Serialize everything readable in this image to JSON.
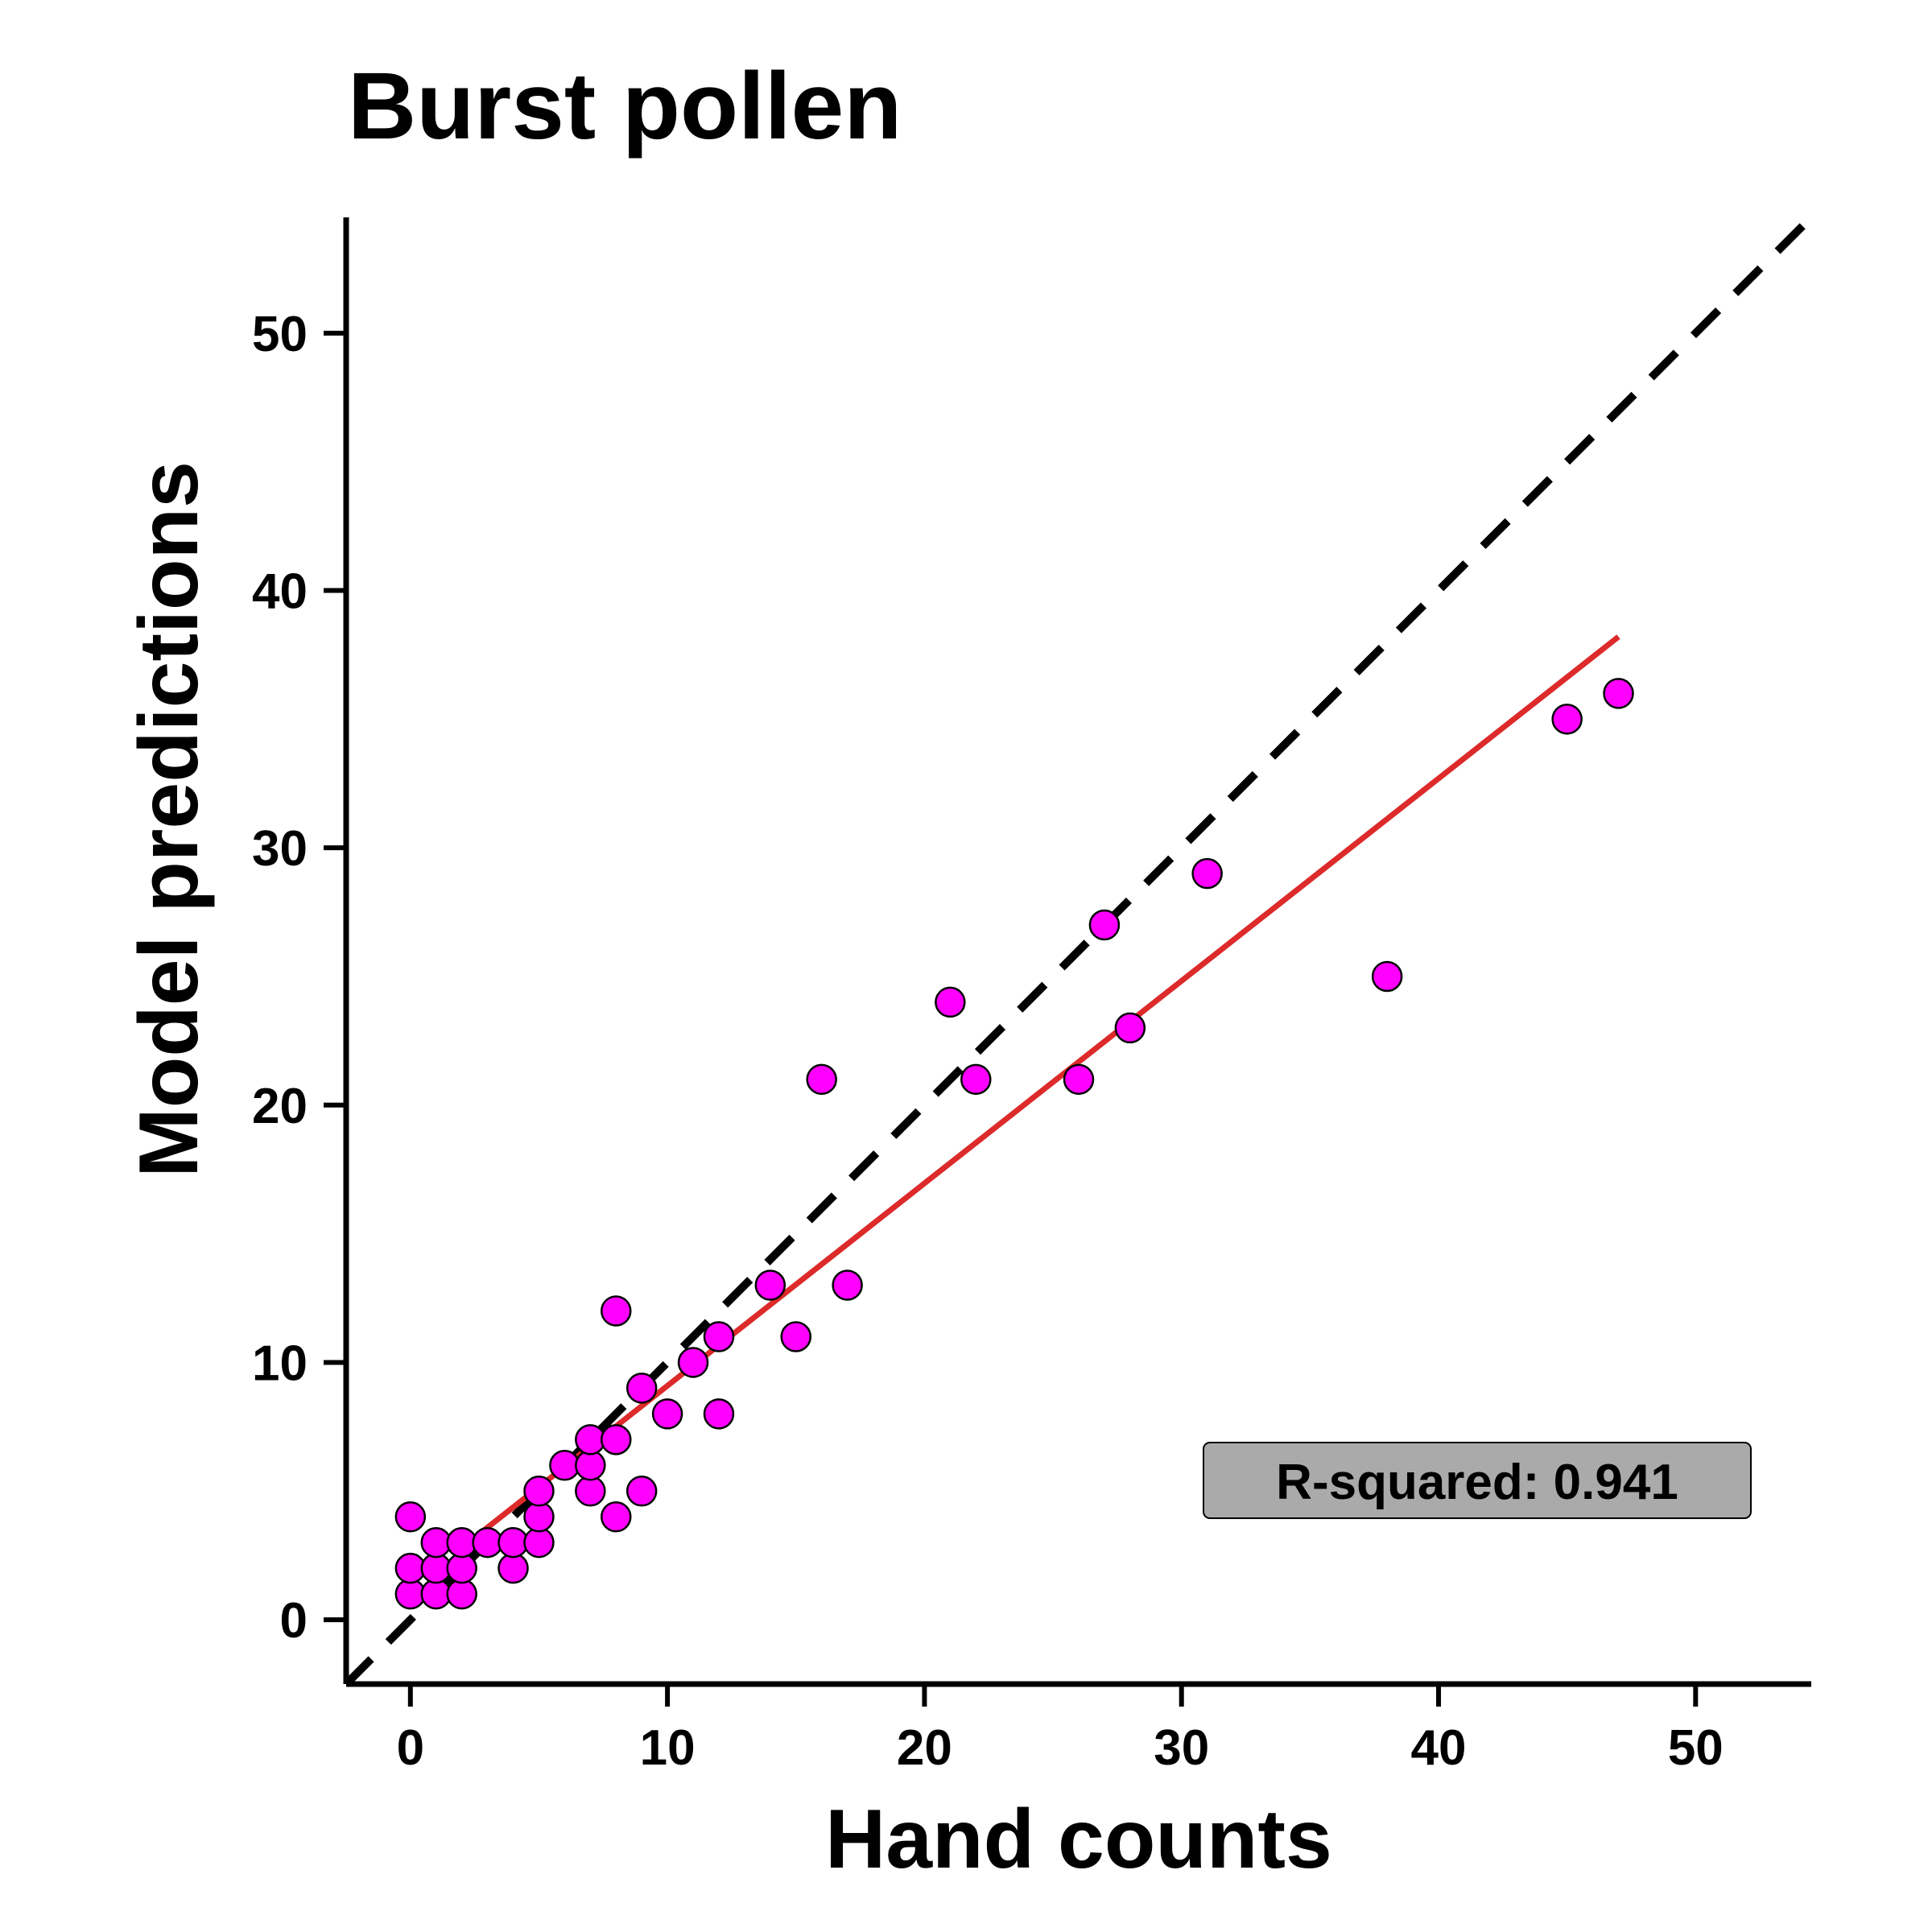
{
  "chart_data": {
    "type": "scatter",
    "title": "Burst pollen",
    "xlabel": "Hand counts",
    "ylabel": "Model predictions",
    "xlim": [
      -2.5,
      54.5
    ],
    "ylim": [
      -2.5,
      54.5
    ],
    "xticks": [
      0,
      10,
      20,
      30,
      40,
      50
    ],
    "yticks": [
      0,
      10,
      20,
      30,
      40,
      50
    ],
    "grid": false,
    "annotation": "R-squared: 0.941",
    "annotation_position": "bottom-right",
    "colors": {
      "points": "#ff00ff",
      "point_edge": "#000000",
      "fit_line": "#dd2a2a",
      "identity_line": "#000000",
      "annotation_bg": "#aaaaaa"
    },
    "identity_line": {
      "x": [
        -2.5,
        54.5
      ],
      "y": [
        -2.5,
        54.5
      ],
      "style": "dashed"
    },
    "fit_line": {
      "x": [
        2,
        47
      ],
      "y": [
        2.8,
        38.2
      ]
    },
    "series": [
      {
        "points": [
          [
            0,
            1
          ],
          [
            0,
            2
          ],
          [
            0,
            4
          ],
          [
            1,
            1
          ],
          [
            1,
            2
          ],
          [
            1,
            3
          ],
          [
            2,
            1
          ],
          [
            2,
            2
          ],
          [
            2,
            3
          ],
          [
            3,
            3
          ],
          [
            4,
            2
          ],
          [
            4,
            3
          ],
          [
            5,
            3
          ],
          [
            5,
            4
          ],
          [
            5,
            5
          ],
          [
            6,
            6
          ],
          [
            7,
            5
          ],
          [
            7,
            6
          ],
          [
            7,
            7
          ],
          [
            8,
            4
          ],
          [
            8,
            7
          ],
          [
            8,
            12
          ],
          [
            9,
            5
          ],
          [
            9,
            9
          ],
          [
            10,
            8
          ],
          [
            11,
            10
          ],
          [
            12,
            8
          ],
          [
            12,
            11
          ],
          [
            14,
            13
          ],
          [
            15,
            11
          ],
          [
            16,
            21
          ],
          [
            17,
            13
          ],
          [
            21,
            24
          ],
          [
            22,
            21
          ],
          [
            26,
            21
          ],
          [
            27,
            27
          ],
          [
            28,
            23
          ],
          [
            31,
            29
          ],
          [
            38,
            25
          ],
          [
            45,
            35
          ],
          [
            47,
            36
          ]
        ]
      }
    ]
  }
}
